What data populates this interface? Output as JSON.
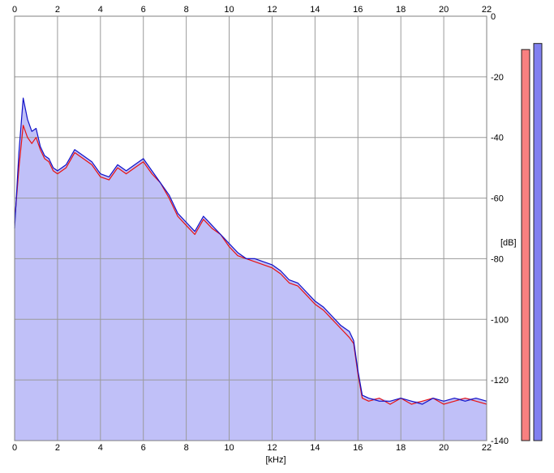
{
  "chart_data": {
    "type": "area",
    "title": "",
    "xlabel": "[kHz]",
    "ylabel": "[dB]",
    "xlim": [
      0,
      22
    ],
    "ylim": [
      -140,
      0
    ],
    "x_ticks": [
      "0",
      "2",
      "4",
      "6",
      "8",
      "10",
      "12",
      "14",
      "16",
      "18",
      "20",
      "22"
    ],
    "y_ticks": [
      "0",
      "-20",
      "-40",
      "-60",
      "-80",
      "-100",
      "-120",
      "-140"
    ],
    "grid": true,
    "x_unit": "kHz",
    "y_unit": "dB",
    "series": [
      {
        "color": "#e81010",
        "x": [
          0,
          0.2,
          0.4,
          0.6,
          0.8,
          1,
          1.2,
          1.4,
          1.6,
          1.8,
          2,
          2.4,
          2.8,
          3.2,
          3.6,
          4,
          4.4,
          4.8,
          5.2,
          5.6,
          6,
          6.4,
          6.8,
          7.2,
          7.6,
          8,
          8.4,
          8.8,
          9.2,
          9.6,
          10,
          10.4,
          10.8,
          11.2,
          11.6,
          12,
          12.4,
          12.8,
          13.2,
          13.6,
          14,
          14.4,
          14.8,
          15.2,
          15.6,
          15.8,
          16,
          16.2,
          16.5,
          17,
          17.5,
          18,
          18.5,
          19,
          19.5,
          20,
          20.5,
          21,
          21.5,
          22
        ],
        "values": [
          -68,
          -50,
          -36,
          -40,
          -42,
          -40,
          -44,
          -47,
          -48,
          -51,
          -52,
          -50,
          -45,
          -47,
          -49,
          -53,
          -54,
          -50,
          -52,
          -50,
          -48,
          -52,
          -55,
          -60,
          -66,
          -69,
          -72,
          -67,
          -70,
          -72,
          -76,
          -79,
          -80,
          -81,
          -82,
          -83,
          -85,
          -88,
          -89,
          -92,
          -95,
          -97,
          -100,
          -103,
          -106,
          -108,
          -118,
          -126,
          -127,
          -126,
          -128,
          -126,
          -128,
          -127,
          -126,
          -128,
          -127,
          -126,
          -127,
          -128
        ]
      },
      {
        "color": "#1010c8",
        "x": [
          0,
          0.2,
          0.4,
          0.6,
          0.8,
          1,
          1.2,
          1.4,
          1.6,
          1.8,
          2,
          2.4,
          2.8,
          3.2,
          3.6,
          4,
          4.4,
          4.8,
          5.2,
          5.6,
          6,
          6.4,
          6.8,
          7.2,
          7.6,
          8,
          8.4,
          8.8,
          9.2,
          9.6,
          10,
          10.4,
          10.8,
          11.2,
          11.6,
          12,
          12.4,
          12.8,
          13.2,
          13.6,
          14,
          14.4,
          14.8,
          15.2,
          15.6,
          15.8,
          16,
          16.2,
          16.5,
          17,
          17.5,
          18,
          18.5,
          19,
          19.5,
          20,
          20.5,
          21,
          21.5,
          22
        ],
        "values": [
          -70,
          -45,
          -27,
          -34,
          -38,
          -37,
          -43,
          -46,
          -47,
          -50,
          -51,
          -49,
          -44,
          -46,
          -48,
          -52,
          -53,
          -49,
          -51,
          -49,
          -47,
          -51,
          -55,
          -59,
          -65,
          -68,
          -71,
          -66,
          -69,
          -72,
          -75,
          -78,
          -80,
          -80,
          -81,
          -82,
          -84,
          -87,
          -88,
          -91,
          -94,
          -96,
          -99,
          -102,
          -104,
          -107,
          -117,
          -125,
          -126,
          -127,
          -127,
          -126,
          -127,
          -128,
          -126,
          -127,
          -126,
          -127,
          -126,
          -127
        ]
      }
    ],
    "fill_color": "#c0c0f8",
    "level_meters": [
      {
        "color": "#f88080",
        "level_db": -11
      },
      {
        "color": "#8080f0",
        "level_db": -9
      }
    ]
  }
}
